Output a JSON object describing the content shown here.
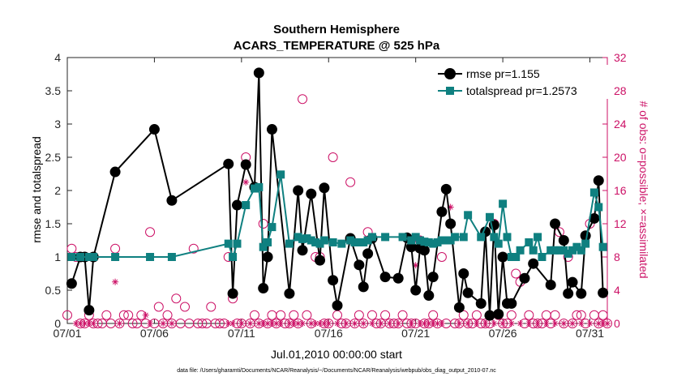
{
  "chart_data": {
    "type": "line",
    "title_line1": "Southern Hemisphere",
    "title_line2": "ACARS_TEMPERATURE @ 525 hPa",
    "xlabel": "Jul.01,2010 00:00:00 start",
    "ylabel_left": "rmse and totalspread",
    "ylabel_right": "# of obs: o=possible; ×=assimilated",
    "footnote": "data file: /Users/gharamti/Documents/NCAR/Reanalysis/~/Documents/NCAR/Reanalysis/webpub/obs_diag_output_2010-07.nc",
    "xlim": [
      0,
      31
    ],
    "ylim_left": [
      0,
      4
    ],
    "ylim_right": [
      0,
      32
    ],
    "x_ticks": [
      0,
      5,
      10,
      15,
      20,
      25,
      30
    ],
    "x_tick_labels": [
      "07/01",
      "07/06",
      "07/11",
      "07/16",
      "07/21",
      "07/26",
      "07/31"
    ],
    "y_ticks_left": [
      0,
      0.5,
      1,
      1.5,
      2,
      2.5,
      3,
      3.5,
      4
    ],
    "y_tick_labels_left": [
      "0",
      "0.5",
      "1",
      "1.5",
      "2",
      "2.5",
      "3",
      "3.5",
      "4"
    ],
    "y_ticks_right": [
      0,
      4,
      8,
      12,
      16,
      20,
      24,
      28,
      32
    ],
    "y_tick_labels_right": [
      "0",
      "4",
      "8",
      "12",
      "16",
      "20",
      "24",
      "28",
      "32"
    ],
    "colors": {
      "rmse": "#000000",
      "spread": "#0f8080",
      "obs": "#cc1166"
    },
    "series": [
      {
        "name": "rmse pr=1.155",
        "key": "rmse",
        "points": [
          [
            0.25,
            0.6
          ],
          [
            0.75,
            1.0
          ],
          [
            1.0,
            1.0
          ],
          [
            1.25,
            0.2
          ],
          [
            1.5,
            1.0
          ],
          [
            2.75,
            2.28
          ],
          [
            5.0,
            2.92
          ],
          [
            6.0,
            1.85
          ],
          [
            9.25,
            2.4
          ],
          [
            9.5,
            0.45
          ],
          [
            9.75,
            1.78
          ],
          [
            10.25,
            2.39
          ],
          [
            10.75,
            2.05
          ],
          [
            11.0,
            3.77
          ],
          [
            11.25,
            0.53
          ],
          [
            11.5,
            1.0
          ],
          [
            11.75,
            2.92
          ],
          [
            12.75,
            0.45
          ],
          [
            13.25,
            2.0
          ],
          [
            13.5,
            1.1
          ],
          [
            14.0,
            1.95
          ],
          [
            14.5,
            0.95
          ],
          [
            14.75,
            2.04
          ],
          [
            15.25,
            0.65
          ],
          [
            15.5,
            0.27
          ],
          [
            16.25,
            1.28
          ],
          [
            16.75,
            0.88
          ],
          [
            17.0,
            0.55
          ],
          [
            17.25,
            1.05
          ],
          [
            17.5,
            1.28
          ],
          [
            18.25,
            0.7
          ],
          [
            19.0,
            0.68
          ],
          [
            19.5,
            1.29
          ],
          [
            19.75,
            1.15
          ],
          [
            20.0,
            0.5
          ],
          [
            20.25,
            1.13
          ],
          [
            20.5,
            1.1
          ],
          [
            20.75,
            0.42
          ],
          [
            21.0,
            0.7
          ],
          [
            21.5,
            1.68
          ],
          [
            21.75,
            2.02
          ],
          [
            22.0,
            1.5
          ],
          [
            22.5,
            0.24
          ],
          [
            22.75,
            0.75
          ],
          [
            23.0,
            0.46
          ],
          [
            23.75,
            0.3
          ],
          [
            24.0,
            1.38
          ],
          [
            24.25,
            0.12
          ],
          [
            24.5,
            1.48
          ],
          [
            24.75,
            0.14
          ],
          [
            25.0,
            1.0
          ],
          [
            25.25,
            0.3
          ],
          [
            25.5,
            0.3
          ],
          [
            26.25,
            0.68
          ],
          [
            26.75,
            0.9
          ],
          [
            27.75,
            0.58
          ],
          [
            28.0,
            1.5
          ],
          [
            28.5,
            1.25
          ],
          [
            28.75,
            0.45
          ],
          [
            29.0,
            0.62
          ],
          [
            29.5,
            0.45
          ],
          [
            29.75,
            1.32
          ],
          [
            30.25,
            1.58
          ],
          [
            30.5,
            2.15
          ],
          [
            30.75,
            0.46
          ]
        ]
      },
      {
        "name": "totalspread pr=1.2573",
        "key": "spread",
        "points": [
          [
            0.25,
            1.0
          ],
          [
            0.75,
            1.0
          ],
          [
            1.25,
            1.0
          ],
          [
            1.5,
            1.0
          ],
          [
            2.75,
            1.0
          ],
          [
            4.75,
            1.0
          ],
          [
            6.0,
            1.0
          ],
          [
            9.25,
            1.2
          ],
          [
            9.5,
            1.0
          ],
          [
            9.75,
            1.2
          ],
          [
            10.25,
            1.78
          ],
          [
            10.75,
            2.03
          ],
          [
            11.0,
            2.05
          ],
          [
            11.25,
            1.15
          ],
          [
            11.5,
            1.22
          ],
          [
            11.75,
            1.45
          ],
          [
            12.25,
            2.24
          ],
          [
            12.75,
            1.2
          ],
          [
            13.25,
            1.3
          ],
          [
            13.5,
            1.27
          ],
          [
            13.75,
            1.28
          ],
          [
            14.0,
            1.25
          ],
          [
            14.25,
            1.22
          ],
          [
            14.5,
            1.2
          ],
          [
            14.75,
            1.25
          ],
          [
            15.25,
            1.22
          ],
          [
            15.75,
            1.2
          ],
          [
            16.25,
            1.25
          ],
          [
            16.5,
            1.22
          ],
          [
            16.75,
            1.22
          ],
          [
            17.0,
            1.22
          ],
          [
            17.25,
            1.25
          ],
          [
            17.5,
            1.3
          ],
          [
            18.25,
            1.3
          ],
          [
            19.25,
            1.3
          ],
          [
            19.75,
            1.25
          ],
          [
            20.0,
            1.3
          ],
          [
            20.25,
            1.25
          ],
          [
            20.5,
            1.23
          ],
          [
            20.75,
            1.22
          ],
          [
            21.0,
            1.2
          ],
          [
            21.25,
            1.22
          ],
          [
            21.5,
            1.25
          ],
          [
            21.75,
            1.25
          ],
          [
            22.0,
            1.25
          ],
          [
            22.25,
            1.3
          ],
          [
            22.75,
            1.3
          ],
          [
            23.0,
            1.63
          ],
          [
            23.75,
            1.3
          ],
          [
            24.25,
            1.6
          ],
          [
            24.5,
            1.3
          ],
          [
            24.75,
            1.2
          ],
          [
            25.0,
            1.8
          ],
          [
            25.25,
            1.3
          ],
          [
            25.5,
            1.0
          ],
          [
            25.75,
            1.0
          ],
          [
            26.0,
            1.1
          ],
          [
            26.5,
            1.22
          ],
          [
            26.75,
            1.1
          ],
          [
            27.0,
            1.3
          ],
          [
            27.25,
            1.0
          ],
          [
            27.75,
            1.1
          ],
          [
            28.0,
            1.1
          ],
          [
            28.25,
            1.1
          ],
          [
            28.5,
            1.1
          ],
          [
            28.75,
            1.05
          ],
          [
            29.0,
            1.1
          ],
          [
            29.25,
            1.15
          ],
          [
            29.5,
            1.1
          ],
          [
            29.75,
            1.2
          ],
          [
            30.25,
            1.97
          ],
          [
            30.5,
            1.75
          ],
          [
            30.75,
            1.15
          ]
        ]
      }
    ],
    "obs_possible": [
      [
        0.0,
        1
      ],
      [
        0.25,
        9
      ],
      [
        0.5,
        8
      ],
      [
        0.75,
        0
      ],
      [
        1.0,
        0
      ],
      [
        1.25,
        1
      ],
      [
        1.5,
        0
      ],
      [
        1.75,
        0
      ],
      [
        2.0,
        0
      ],
      [
        2.25,
        1
      ],
      [
        2.5,
        0
      ],
      [
        2.75,
        9
      ],
      [
        3.0,
        0
      ],
      [
        3.25,
        1
      ],
      [
        3.5,
        1
      ],
      [
        3.75,
        0
      ],
      [
        4.0,
        0
      ],
      [
        4.25,
        1
      ],
      [
        4.5,
        0
      ],
      [
        4.75,
        11
      ],
      [
        5.0,
        0
      ],
      [
        5.25,
        2
      ],
      [
        5.5,
        0
      ],
      [
        5.75,
        1
      ],
      [
        6.0,
        0
      ],
      [
        6.25,
        3
      ],
      [
        6.5,
        0
      ],
      [
        6.75,
        2
      ],
      [
        7.0,
        0
      ],
      [
        7.25,
        9
      ],
      [
        7.5,
        0
      ],
      [
        7.75,
        0
      ],
      [
        8.0,
        0
      ],
      [
        8.25,
        2
      ],
      [
        8.5,
        0
      ],
      [
        8.75,
        0
      ],
      [
        9.0,
        0
      ],
      [
        9.25,
        8
      ],
      [
        9.5,
        3
      ],
      [
        9.75,
        0
      ],
      [
        10.0,
        0
      ],
      [
        10.25,
        20
      ],
      [
        10.5,
        0
      ],
      [
        10.75,
        1
      ],
      [
        11.0,
        0
      ],
      [
        11.25,
        12
      ],
      [
        11.5,
        0
      ],
      [
        11.75,
        1
      ],
      [
        12.0,
        0
      ],
      [
        12.25,
        1
      ],
      [
        12.5,
        0
      ],
      [
        12.75,
        0
      ],
      [
        13.0,
        1
      ],
      [
        13.25,
        0
      ],
      [
        13.5,
        27
      ],
      [
        13.75,
        1
      ],
      [
        14.0,
        0
      ],
      [
        14.25,
        8
      ],
      [
        14.5,
        8
      ],
      [
        14.75,
        0
      ],
      [
        15.0,
        0
      ],
      [
        15.25,
        20
      ],
      [
        15.5,
        1
      ],
      [
        15.75,
        0
      ],
      [
        16.0,
        0
      ],
      [
        16.25,
        17
      ],
      [
        16.5,
        0
      ],
      [
        16.75,
        1
      ],
      [
        17.0,
        0
      ],
      [
        17.25,
        11
      ],
      [
        17.5,
        1
      ],
      [
        17.75,
        0
      ],
      [
        18.0,
        0
      ],
      [
        18.25,
        1
      ],
      [
        18.5,
        0
      ],
      [
        18.75,
        0
      ],
      [
        19.0,
        0
      ],
      [
        19.25,
        1
      ],
      [
        19.5,
        0
      ],
      [
        19.75,
        0
      ],
      [
        20.0,
        0
      ],
      [
        20.25,
        10
      ],
      [
        20.5,
        0
      ],
      [
        20.75,
        0
      ],
      [
        21.0,
        1
      ],
      [
        21.25,
        0
      ],
      [
        21.5,
        8
      ],
      [
        21.75,
        0
      ],
      [
        22.0,
        12
      ],
      [
        22.25,
        0
      ],
      [
        22.5,
        0
      ],
      [
        22.75,
        1
      ],
      [
        23.0,
        0
      ],
      [
        23.25,
        0
      ],
      [
        23.5,
        1
      ],
      [
        23.75,
        0
      ],
      [
        24.0,
        0
      ],
      [
        24.25,
        0
      ],
      [
        24.5,
        12
      ],
      [
        24.75,
        1
      ],
      [
        25.0,
        0
      ],
      [
        25.25,
        0
      ],
      [
        25.5,
        1
      ],
      [
        25.75,
        6
      ],
      [
        26.0,
        5
      ],
      [
        26.25,
        0
      ],
      [
        26.5,
        1
      ],
      [
        26.75,
        0
      ],
      [
        27.0,
        0
      ],
      [
        27.25,
        0
      ],
      [
        27.5,
        1
      ],
      [
        27.75,
        0
      ],
      [
        28.0,
        1
      ],
      [
        28.25,
        11
      ],
      [
        28.5,
        0
      ],
      [
        28.75,
        8
      ],
      [
        29.0,
        0
      ],
      [
        29.25,
        1
      ],
      [
        29.5,
        1
      ],
      [
        29.75,
        0
      ],
      [
        30.0,
        12
      ],
      [
        30.25,
        1
      ],
      [
        30.5,
        0
      ],
      [
        30.75,
        1
      ],
      [
        31.0,
        0
      ]
    ],
    "obs_assimilated": [
      [
        0.25,
        5
      ],
      [
        0.5,
        0
      ],
      [
        0.75,
        0
      ],
      [
        1.0,
        0
      ],
      [
        1.25,
        0
      ],
      [
        1.5,
        0
      ],
      [
        2.75,
        5
      ],
      [
        3.0,
        0
      ],
      [
        4.5,
        1
      ],
      [
        4.75,
        0
      ],
      [
        5.5,
        0
      ],
      [
        6.0,
        0
      ],
      [
        9.25,
        0
      ],
      [
        9.5,
        0
      ],
      [
        10.0,
        0
      ],
      [
        10.25,
        17
      ],
      [
        10.5,
        0
      ],
      [
        11.0,
        0
      ],
      [
        11.25,
        0
      ],
      [
        11.5,
        0
      ],
      [
        11.75,
        0
      ],
      [
        12.0,
        0
      ],
      [
        12.25,
        0
      ],
      [
        12.75,
        0
      ],
      [
        13.0,
        0
      ],
      [
        13.25,
        0
      ],
      [
        13.5,
        0
      ],
      [
        14.0,
        0
      ],
      [
        14.25,
        0
      ],
      [
        14.5,
        0
      ],
      [
        14.75,
        0
      ],
      [
        15.0,
        0
      ],
      [
        15.5,
        0
      ],
      [
        16.0,
        0
      ],
      [
        16.5,
        0
      ],
      [
        17.0,
        0
      ],
      [
        17.5,
        0
      ],
      [
        18.0,
        0
      ],
      [
        18.5,
        0
      ],
      [
        19.0,
        0
      ],
      [
        19.75,
        0
      ],
      [
        20.0,
        7
      ],
      [
        20.25,
        0
      ],
      [
        20.5,
        0
      ],
      [
        20.75,
        0
      ],
      [
        21.0,
        0
      ],
      [
        21.25,
        0
      ],
      [
        21.5,
        0
      ],
      [
        22.0,
        14
      ],
      [
        22.5,
        0
      ],
      [
        23.0,
        0
      ],
      [
        23.5,
        0
      ],
      [
        24.0,
        0
      ],
      [
        24.5,
        0
      ],
      [
        25.0,
        0
      ],
      [
        25.5,
        0
      ],
      [
        26.0,
        0
      ],
      [
        26.5,
        0
      ],
      [
        27.0,
        0
      ],
      [
        27.5,
        0
      ],
      [
        28.0,
        0
      ],
      [
        28.5,
        0
      ],
      [
        29.0,
        0
      ],
      [
        29.5,
        0
      ],
      [
        30.0,
        0
      ],
      [
        30.5,
        0
      ],
      [
        30.75,
        0
      ],
      [
        31.0,
        0
      ]
    ]
  }
}
